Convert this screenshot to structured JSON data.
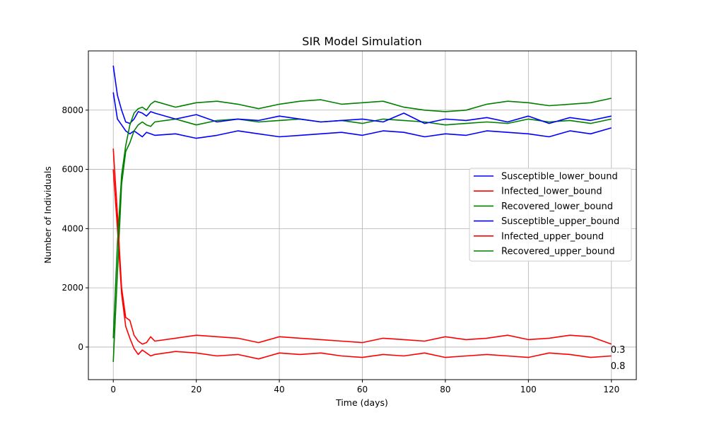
{
  "chart_data": {
    "type": "line",
    "title": "SIR Model Simulation",
    "xlabel": "Time (days)",
    "ylabel": "Number of Individuals",
    "xlim": [
      -6,
      126
    ],
    "ylim": [
      -1100,
      10000
    ],
    "xticks": [
      0,
      20,
      40,
      60,
      80,
      100,
      120
    ],
    "yticks": [
      0,
      2000,
      4000,
      6000,
      8000
    ],
    "grid": true,
    "legend_position": "center-right",
    "annotations": [
      {
        "text": "0.3",
        "x": 120,
        "y": 0
      },
      {
        "text": "0.8",
        "x": 120,
        "y": -550
      }
    ],
    "series": [
      {
        "name": "Susceptible_lower_bound",
        "color": "#0000ff",
        "x": [
          0,
          1,
          2,
          3,
          4,
          5,
          6,
          7,
          8,
          9,
          10,
          15,
          20,
          25,
          30,
          35,
          40,
          45,
          50,
          55,
          60,
          65,
          70,
          75,
          80,
          85,
          90,
          95,
          100,
          105,
          110,
          115,
          120
        ],
        "y": [
          8600,
          7700,
          7500,
          7300,
          7200,
          7300,
          7200,
          7100,
          7250,
          7200,
          7150,
          7200,
          7050,
          7150,
          7300,
          7200,
          7100,
          7150,
          7200,
          7250,
          7150,
          7300,
          7250,
          7100,
          7200,
          7150,
          7300,
          7250,
          7200,
          7100,
          7300,
          7200,
          7400
        ]
      },
      {
        "name": "Infected_lower_bound",
        "color": "#ff0000",
        "x": [
          0,
          1,
          2,
          3,
          4,
          5,
          6,
          7,
          8,
          9,
          10,
          15,
          20,
          25,
          30,
          35,
          40,
          45,
          50,
          55,
          60,
          65,
          70,
          75,
          80,
          85,
          90,
          95,
          100,
          105,
          110,
          115,
          120
        ],
        "y": [
          6000,
          4000,
          1800,
          700,
          300,
          -50,
          -250,
          -100,
          -200,
          -300,
          -250,
          -150,
          -200,
          -300,
          -250,
          -400,
          -200,
          -250,
          -200,
          -300,
          -350,
          -250,
          -300,
          -200,
          -350,
          -300,
          -250,
          -300,
          -350,
          -200,
          -250,
          -350,
          -300
        ]
      },
      {
        "name": "Recovered_lower_bound",
        "color": "#008000",
        "x": [
          0,
          1,
          2,
          3,
          4,
          5,
          6,
          7,
          8,
          9,
          10,
          15,
          20,
          25,
          30,
          35,
          40,
          45,
          50,
          55,
          60,
          65,
          70,
          75,
          80,
          85,
          90,
          95,
          100,
          105,
          110,
          115,
          120
        ],
        "y": [
          -500,
          2500,
          5500,
          6600,
          6900,
          7300,
          7500,
          7600,
          7500,
          7450,
          7600,
          7700,
          7500,
          7650,
          7700,
          7600,
          7650,
          7700,
          7600,
          7650,
          7550,
          7700,
          7650,
          7600,
          7500,
          7550,
          7600,
          7550,
          7700,
          7600,
          7650,
          7550,
          7700
        ]
      },
      {
        "name": "Susceptible_upper_bound",
        "color": "#0000ff",
        "x": [
          0,
          1,
          2,
          3,
          4,
          5,
          6,
          7,
          8,
          9,
          10,
          15,
          20,
          25,
          30,
          35,
          40,
          45,
          50,
          55,
          60,
          65,
          70,
          75,
          80,
          85,
          90,
          95,
          100,
          105,
          110,
          115,
          120
        ],
        "y": [
          9500,
          8500,
          8000,
          7600,
          7550,
          7700,
          7950,
          7900,
          7800,
          7950,
          7900,
          7700,
          7850,
          7600,
          7700,
          7650,
          7800,
          7700,
          7600,
          7650,
          7700,
          7600,
          7900,
          7550,
          7700,
          7650,
          7750,
          7600,
          7800,
          7550,
          7750,
          7650,
          7800
        ]
      },
      {
        "name": "Infected_upper_bound",
        "color": "#ff0000",
        "x": [
          0,
          1,
          2,
          3,
          4,
          5,
          6,
          7,
          8,
          9,
          10,
          15,
          20,
          25,
          30,
          35,
          40,
          45,
          50,
          55,
          60,
          65,
          70,
          75,
          80,
          85,
          90,
          95,
          100,
          105,
          110,
          115,
          120
        ],
        "y": [
          6700,
          4500,
          2000,
          1000,
          900,
          400,
          200,
          100,
          150,
          350,
          200,
          300,
          400,
          350,
          300,
          150,
          350,
          300,
          250,
          200,
          150,
          300,
          250,
          200,
          350,
          250,
          300,
          400,
          250,
          300,
          400,
          350,
          100
        ]
      },
      {
        "name": "Recovered_upper_bound",
        "color": "#008000",
        "x": [
          0,
          1,
          2,
          3,
          4,
          5,
          6,
          7,
          8,
          9,
          10,
          15,
          20,
          25,
          30,
          35,
          40,
          45,
          50,
          55,
          60,
          65,
          70,
          75,
          80,
          85,
          90,
          95,
          100,
          105,
          110,
          115,
          120
        ],
        "y": [
          300,
          3500,
          5800,
          6800,
          7500,
          7900,
          8050,
          8100,
          8000,
          8200,
          8300,
          8100,
          8250,
          8300,
          8200,
          8050,
          8200,
          8300,
          8350,
          8200,
          8250,
          8300,
          8100,
          8000,
          7950,
          8000,
          8200,
          8300,
          8250,
          8150,
          8200,
          8250,
          8400
        ]
      }
    ]
  }
}
